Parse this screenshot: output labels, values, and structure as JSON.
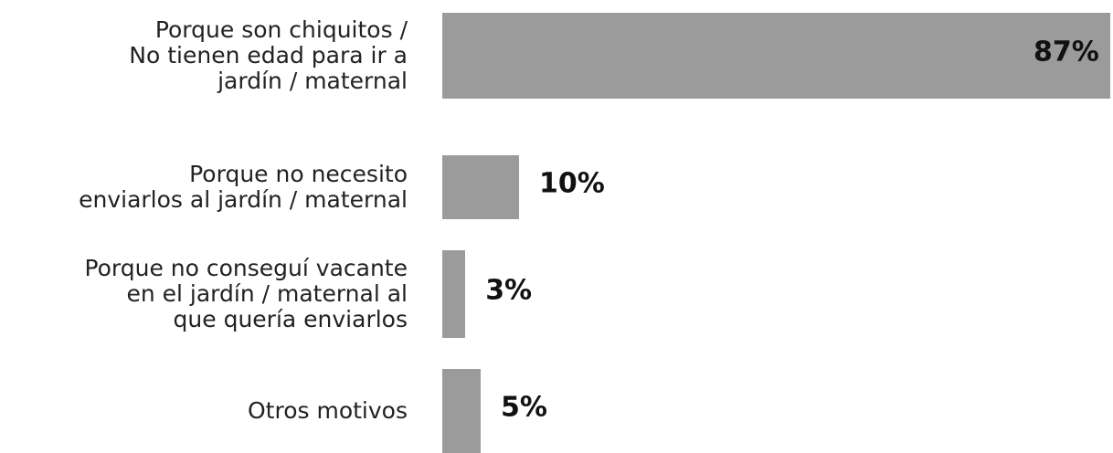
{
  "chart_data": {
    "type": "bar",
    "orientation": "horizontal",
    "categories": [
      "Porque son chiquitos /\nNo tienen edad para ir a\njardín / maternal",
      "Porque no necesito\nenviarlos al jardín / maternal",
      "Porque no conseguí vacante\nen el jardín / maternal al\nque quería enviarlos",
      "Otros motivos"
    ],
    "values": [
      87,
      10,
      3,
      5
    ],
    "value_labels": [
      "87%",
      "10%",
      "3%",
      "5%"
    ],
    "color": "#9b9b9b"
  }
}
